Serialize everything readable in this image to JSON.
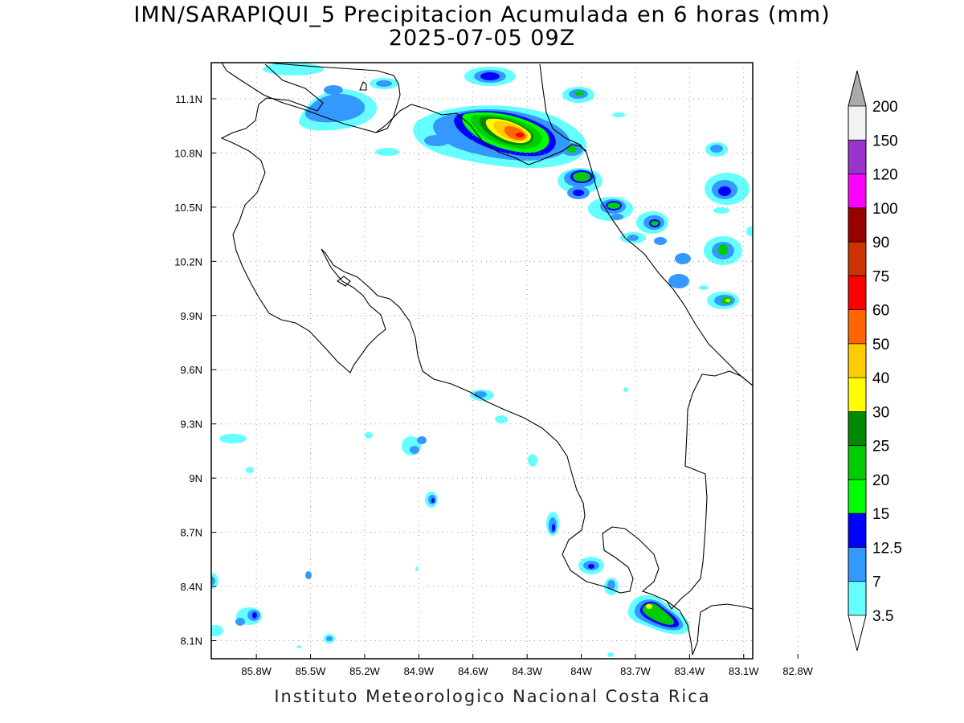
{
  "header": {
    "title": "IMN/SARAPIQUI_5 Precipitacion Acumulada en 6 horas (mm)",
    "subtitle": "2025-07-05 09Z"
  },
  "footer": {
    "credit": "Instituto Meteorologico Nacional Costa Rica"
  },
  "map": {
    "lon_range": [
      -86.05,
      -83.05
    ],
    "lat_range": [
      8.0,
      11.3
    ],
    "lon_ticks": [
      {
        "value": -85.8,
        "label": "85.8W"
      },
      {
        "value": -85.5,
        "label": "85.5W"
      },
      {
        "value": -85.2,
        "label": "85.2W"
      },
      {
        "value": -84.9,
        "label": "84.9W"
      },
      {
        "value": -84.6,
        "label": "84.6W"
      },
      {
        "value": -84.3,
        "label": "84.3W"
      },
      {
        "value": -84.0,
        "label": "84W"
      },
      {
        "value": -83.7,
        "label": "83.7W"
      },
      {
        "value": -83.4,
        "label": "83.4W"
      },
      {
        "value": -83.1,
        "label": "83.1W"
      },
      {
        "value": -82.8,
        "label": "82.8W"
      }
    ],
    "lat_ticks": [
      {
        "value": 11.1,
        "label": "11.1N"
      },
      {
        "value": 10.8,
        "label": "10.8N"
      },
      {
        "value": 10.5,
        "label": "10.5N"
      },
      {
        "value": 10.2,
        "label": "10.2N"
      },
      {
        "value": 9.9,
        "label": "9.9N"
      },
      {
        "value": 9.6,
        "label": "9.6N"
      },
      {
        "value": 9.3,
        "label": "9.3N"
      },
      {
        "value": 9.0,
        "label": "9N"
      },
      {
        "value": 8.7,
        "label": "8.7N"
      },
      {
        "value": 8.4,
        "label": "8.4N"
      },
      {
        "value": 8.1,
        "label": "8.1N"
      }
    ],
    "grid": true
  },
  "legend": {
    "placement": "right",
    "levels": [
      {
        "label": "3.5",
        "color": "#66ffff"
      },
      {
        "label": "7",
        "color": "#3399ff"
      },
      {
        "label": "12.5",
        "color": "#0000ff"
      },
      {
        "label": "15",
        "color": "#00ff00"
      },
      {
        "label": "20",
        "color": "#00cc00"
      },
      {
        "label": "25",
        "color": "#008800"
      },
      {
        "label": "30",
        "color": "#ffff00"
      },
      {
        "label": "40",
        "color": "#ffcc00"
      },
      {
        "label": "50",
        "color": "#ff6600"
      },
      {
        "label": "60",
        "color": "#ff0000"
      },
      {
        "label": "75",
        "color": "#cc3300"
      },
      {
        "label": "90",
        "color": "#990000"
      },
      {
        "label": "100",
        "color": "#ff00ff"
      },
      {
        "label": "120",
        "color": "#9933cc"
      },
      {
        "label": "150",
        "color": "#f2f2f2"
      },
      {
        "label": "200",
        "color": "#aaaaaa"
      }
    ]
  }
}
